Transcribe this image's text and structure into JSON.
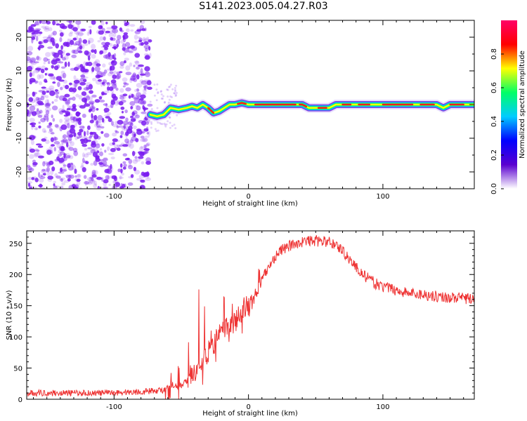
{
  "title": "S141.2023.005.04.27.R03",
  "colors": {
    "snr_line": "#ee3333",
    "noise_dots": "#7a1cf0",
    "colormap": [
      "#ffffff",
      "#5a00d0",
      "#0000ff",
      "#00ccff",
      "#00ff66",
      "#ffff00",
      "#ff0000",
      "#ff0066"
    ]
  },
  "chart_data": [
    {
      "type": "heatmap",
      "name": "spectrogram",
      "xlabel": "Height of straight line (km)",
      "ylabel": "Frequency (Hz)",
      "xlim": [
        -165,
        168
      ],
      "ylim": [
        -25,
        25
      ],
      "xticks": [
        -100,
        0,
        100
      ],
      "yticks": [
        -20,
        -10,
        0,
        10,
        20
      ],
      "grid": false,
      "noise_region_x": [
        -165,
        -73
      ],
      "ridge": {
        "x": [
          -73,
          -68,
          -63,
          -58,
          -52,
          -46,
          -42,
          -38,
          -34,
          -30,
          -26,
          -22,
          -18,
          -14,
          -10,
          -5,
          0,
          10,
          20,
          30,
          40,
          45,
          50,
          55,
          60,
          65,
          70,
          80,
          90,
          100,
          110,
          120,
          130,
          140,
          145,
          150,
          160,
          168
        ],
        "freq": [
          -3,
          -3.5,
          -3,
          -1,
          -1.5,
          -1,
          -0.5,
          -1,
          0,
          -1,
          -2.5,
          -2,
          -1,
          0,
          0,
          0.5,
          0,
          0,
          0,
          0,
          0,
          -1,
          -1,
          -1,
          -1,
          0,
          0,
          0,
          0,
          0,
          0,
          0,
          0,
          0,
          -1,
          0,
          0,
          0
        ]
      },
      "colorbar": {
        "label": "Normalized spectral amplitude",
        "range": [
          0,
          1
        ],
        "ticks": [
          "0.0",
          "0.2",
          "0.4",
          "0.6",
          "0.8"
        ]
      }
    },
    {
      "type": "line",
      "name": "snr",
      "xlabel": "Height of straight line (km)",
      "ylabel": "SNR (10 * v/v)",
      "xlim": [
        -165,
        168
      ],
      "ylim": [
        0,
        270
      ],
      "xticks": [
        -100,
        0,
        100
      ],
      "yticks": [
        0,
        50,
        100,
        150,
        200,
        250
      ],
      "grid": false,
      "series": [
        {
          "x": [
            -165,
            -140,
            -110,
            -80,
            -62,
            -58,
            -55,
            -50,
            -46,
            -42,
            -38,
            -35,
            -32,
            -28,
            -24,
            -20,
            -16,
            -12,
            -8,
            -4,
            0,
            4,
            8,
            12,
            16,
            20,
            25,
            30,
            35,
            40,
            45,
            50,
            55,
            60,
            65,
            70,
            75,
            80,
            85,
            90,
            95,
            100,
            105,
            110,
            115,
            120,
            130,
            140,
            150,
            160,
            168
          ],
          "y": [
            10,
            10,
            10,
            12,
            15,
            25,
            20,
            22,
            30,
            45,
            40,
            60,
            70,
            80,
            95,
            110,
            115,
            120,
            130,
            145,
            150,
            165,
            180,
            200,
            215,
            230,
            240,
            245,
            250,
            252,
            254,
            254,
            253,
            252,
            248,
            238,
            225,
            212,
            200,
            192,
            185,
            180,
            178,
            175,
            172,
            170,
            168,
            165,
            163,
            162,
            160
          ]
        }
      ],
      "spikes": {
        "x": [
          -62,
          -58,
          -52,
          -45,
          -37,
          -33,
          -28,
          -24,
          -18,
          -12,
          -6,
          2,
          5,
          8
        ],
        "y": [
          55,
          45,
          55,
          95,
          183,
          150,
          120,
          135,
          165,
          155,
          175,
          170,
          195,
          210
        ]
      }
    }
  ]
}
